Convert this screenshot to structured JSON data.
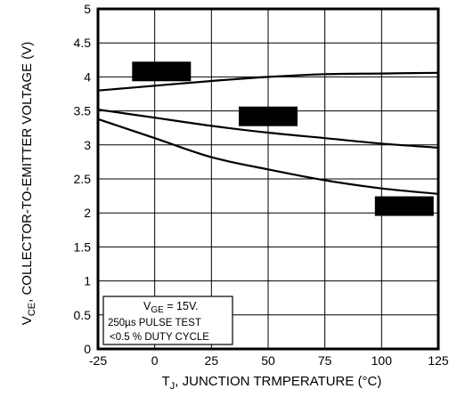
{
  "chart_data": {
    "type": "line",
    "xlabel": {
      "prefix": "T",
      "sub": "J",
      "suffix": ", JUNCTION  TRMPERATURE (°C)"
    },
    "ylabel": {
      "prefix": "V",
      "sub": "CE",
      "suffix": ", COLLECTOR-TO-EMITTER VOLTAGE (V)"
    },
    "xlim": [
      -25,
      125
    ],
    "ylim": [
      0,
      5
    ],
    "x_ticks": [
      -25,
      0,
      25,
      50,
      75,
      100,
      125
    ],
    "y_ticks": [
      0,
      0.5,
      1,
      1.5,
      2,
      2.5,
      3,
      3.5,
      4,
      4.5,
      5
    ],
    "grid": true,
    "series": [
      {
        "x": [
          -25,
          0,
          25,
          50,
          75,
          100,
          125
        ],
        "y": [
          3.8,
          3.87,
          3.94,
          4.0,
          4.04,
          4.05,
          4.06
        ]
      },
      {
        "x": [
          -25,
          0,
          25,
          50,
          75,
          100,
          125
        ],
        "y": [
          3.52,
          3.4,
          3.28,
          3.18,
          3.1,
          3.02,
          2.96
        ]
      },
      {
        "x": [
          -25,
          0,
          25,
          50,
          75,
          100,
          125
        ],
        "y": [
          3.38,
          3.1,
          2.82,
          2.64,
          2.48,
          2.36,
          2.28
        ]
      }
    ],
    "redacted_labels": [
      {
        "x": 3,
        "y": 4.08
      },
      {
        "x": 50,
        "y": 3.42
      },
      {
        "x": 110,
        "y": 2.1
      }
    ],
    "legend_box": {
      "line1": {
        "prefix": "V",
        "sub": "GE",
        "suffix": " = 15V."
      },
      "line2": "250µs PULSE TEST",
      "line3": "<0.5 % DUTY CYCLE"
    }
  }
}
